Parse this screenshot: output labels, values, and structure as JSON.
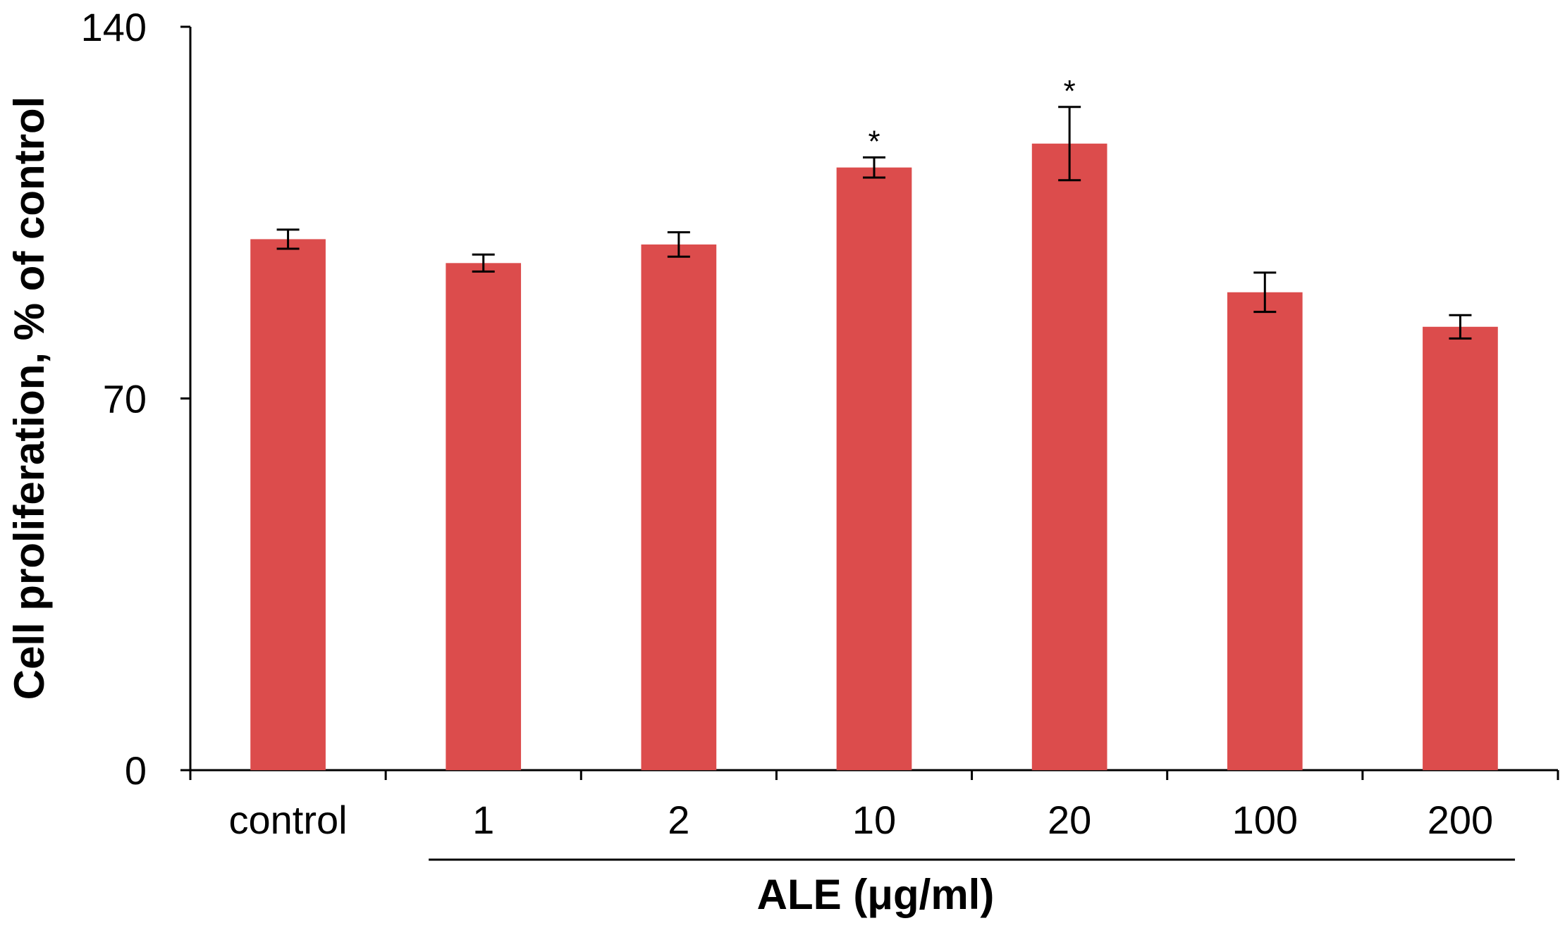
{
  "chart_data": {
    "type": "bar",
    "categories": [
      "control",
      "1",
      "2",
      "10",
      "20",
      "100",
      "200"
    ],
    "series": [
      {
        "values": [
          100,
          95.5,
          99,
          113.5,
          118,
          90,
          83.5
        ],
        "errors": [
          1.8,
          1.6,
          2.3,
          1.9,
          6.9,
          3.7,
          2.2
        ],
        "color": "#dc4c4c"
      }
    ],
    "significance": [
      "",
      "",
      "",
      "*",
      "*",
      "",
      ""
    ],
    "ylabel": "Cell proliferation, % of control",
    "xlabel": "ALE (μg/ml)",
    "ylim": [
      0,
      140
    ],
    "yticks": [
      "0",
      "70",
      "140"
    ],
    "group_bracket": {
      "label": "ALE (μg/ml)",
      "from_category": "1",
      "to_category": "200"
    },
    "grid": false,
    "legend": "none"
  }
}
